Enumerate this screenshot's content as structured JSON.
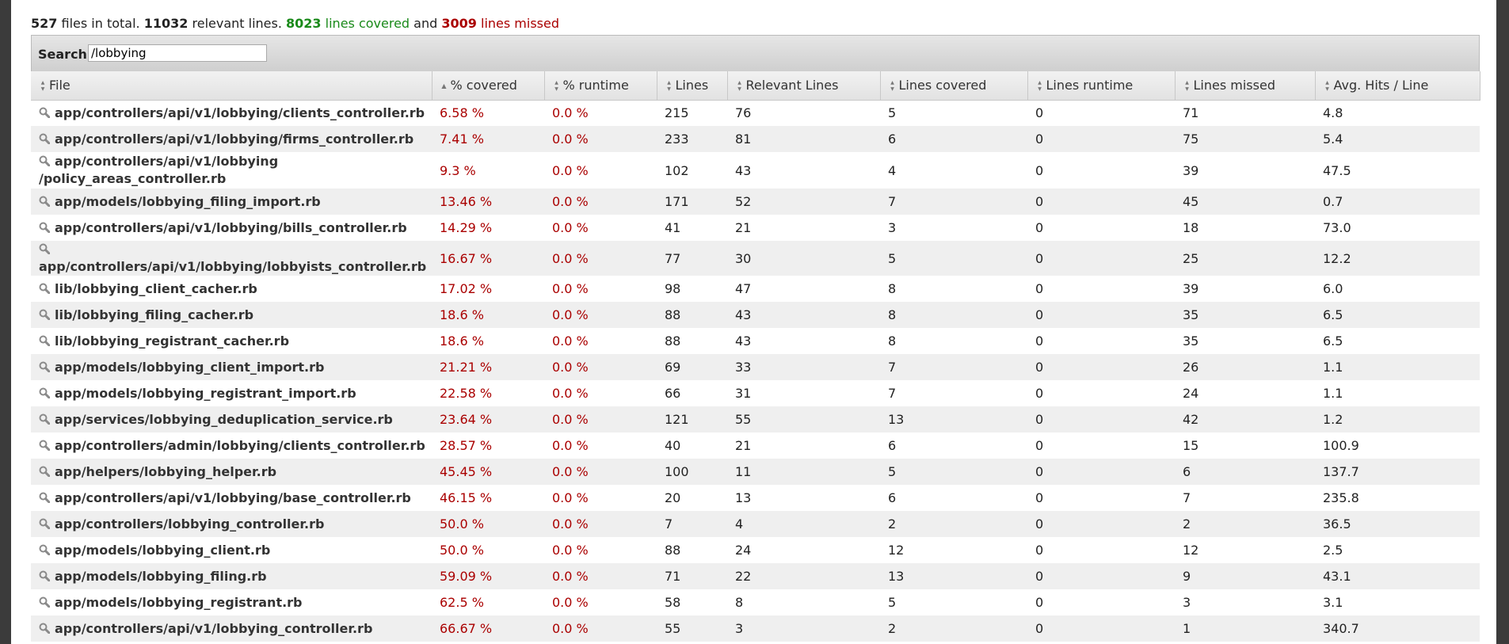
{
  "summary": {
    "files_count": "527",
    "files_text": "files in total.",
    "relevant_count": "11032",
    "relevant_text": "relevant lines.",
    "covered_count": "8023",
    "covered_text": "lines covered",
    "and_text": "and",
    "missed_count": "3009",
    "missed_text": "lines missed"
  },
  "search": {
    "label": "Search:",
    "value": "/lobbying"
  },
  "columns": [
    "File",
    "% covered",
    "% runtime",
    "Lines",
    "Relevant Lines",
    "Lines covered",
    "Lines runtime",
    "Lines missed",
    "Avg. Hits / Line"
  ],
  "rows": [
    {
      "file": "app/controllers/api/v1/lobbying/clients_controller.rb",
      "covered_pct": "6.58 %",
      "runtime_pct": "0.0 %",
      "lines": "215",
      "relevant": "76",
      "covered": "5",
      "runtime": "0",
      "missed": "71",
      "avg": "4.8"
    },
    {
      "file": "app/controllers/api/v1/lobbying/firms_controller.rb",
      "covered_pct": "7.41 %",
      "runtime_pct": "0.0 %",
      "lines": "233",
      "relevant": "81",
      "covered": "6",
      "runtime": "0",
      "missed": "75",
      "avg": "5.4"
    },
    {
      "file": "app/controllers/api/v1/lobbying/policy_areas_controller.rb",
      "covered_pct": "9.3 %",
      "runtime_pct": "0.0 %",
      "lines": "102",
      "relevant": "43",
      "covered": "4",
      "runtime": "0",
      "missed": "39",
      "avg": "47.5"
    },
    {
      "file": "app/models/lobbying_filing_import.rb",
      "covered_pct": "13.46 %",
      "runtime_pct": "0.0 %",
      "lines": "171",
      "relevant": "52",
      "covered": "7",
      "runtime": "0",
      "missed": "45",
      "avg": "0.7"
    },
    {
      "file": "app/controllers/api/v1/lobbying/bills_controller.rb",
      "covered_pct": "14.29 %",
      "runtime_pct": "0.0 %",
      "lines": "41",
      "relevant": "21",
      "covered": "3",
      "runtime": "0",
      "missed": "18",
      "avg": "73.0"
    },
    {
      "file": "app/controllers/api/v1/lobbying/lobbyists_controller.rb",
      "covered_pct": "16.67 %",
      "runtime_pct": "0.0 %",
      "lines": "77",
      "relevant": "30",
      "covered": "5",
      "runtime": "0",
      "missed": "25",
      "avg": "12.2"
    },
    {
      "file": "lib/lobbying_client_cacher.rb",
      "covered_pct": "17.02 %",
      "runtime_pct": "0.0 %",
      "lines": "98",
      "relevant": "47",
      "covered": "8",
      "runtime": "0",
      "missed": "39",
      "avg": "6.0"
    },
    {
      "file": "lib/lobbying_filing_cacher.rb",
      "covered_pct": "18.6 %",
      "runtime_pct": "0.0 %",
      "lines": "88",
      "relevant": "43",
      "covered": "8",
      "runtime": "0",
      "missed": "35",
      "avg": "6.5"
    },
    {
      "file": "lib/lobbying_registrant_cacher.rb",
      "covered_pct": "18.6 %",
      "runtime_pct": "0.0 %",
      "lines": "88",
      "relevant": "43",
      "covered": "8",
      "runtime": "0",
      "missed": "35",
      "avg": "6.5"
    },
    {
      "file": "app/models/lobbying_client_import.rb",
      "covered_pct": "21.21 %",
      "runtime_pct": "0.0 %",
      "lines": "69",
      "relevant": "33",
      "covered": "7",
      "runtime": "0",
      "missed": "26",
      "avg": "1.1"
    },
    {
      "file": "app/models/lobbying_registrant_import.rb",
      "covered_pct": "22.58 %",
      "runtime_pct": "0.0 %",
      "lines": "66",
      "relevant": "31",
      "covered": "7",
      "runtime": "0",
      "missed": "24",
      "avg": "1.1"
    },
    {
      "file": "app/services/lobbying_deduplication_service.rb",
      "covered_pct": "23.64 %",
      "runtime_pct": "0.0 %",
      "lines": "121",
      "relevant": "55",
      "covered": "13",
      "runtime": "0",
      "missed": "42",
      "avg": "1.2"
    },
    {
      "file": "app/controllers/admin/lobbying/clients_controller.rb",
      "covered_pct": "28.57 %",
      "runtime_pct": "0.0 %",
      "lines": "40",
      "relevant": "21",
      "covered": "6",
      "runtime": "0",
      "missed": "15",
      "avg": "100.9"
    },
    {
      "file": "app/helpers/lobbying_helper.rb",
      "covered_pct": "45.45 %",
      "runtime_pct": "0.0 %",
      "lines": "100",
      "relevant": "11",
      "covered": "5",
      "runtime": "0",
      "missed": "6",
      "avg": "137.7"
    },
    {
      "file": "app/controllers/api/v1/lobbying/base_controller.rb",
      "covered_pct": "46.15 %",
      "runtime_pct": "0.0 %",
      "lines": "20",
      "relevant": "13",
      "covered": "6",
      "runtime": "0",
      "missed": "7",
      "avg": "235.8"
    },
    {
      "file": "app/controllers/lobbying_controller.rb",
      "covered_pct": "50.0 %",
      "runtime_pct": "0.0 %",
      "lines": "7",
      "relevant": "4",
      "covered": "2",
      "runtime": "0",
      "missed": "2",
      "avg": "36.5"
    },
    {
      "file": "app/models/lobbying_client.rb",
      "covered_pct": "50.0 %",
      "runtime_pct": "0.0 %",
      "lines": "88",
      "relevant": "24",
      "covered": "12",
      "runtime": "0",
      "missed": "12",
      "avg": "2.5"
    },
    {
      "file": "app/models/lobbying_filing.rb",
      "covered_pct": "59.09 %",
      "runtime_pct": "0.0 %",
      "lines": "71",
      "relevant": "22",
      "covered": "13",
      "runtime": "0",
      "missed": "9",
      "avg": "43.1"
    },
    {
      "file": "app/models/lobbying_registrant.rb",
      "covered_pct": "62.5 %",
      "runtime_pct": "0.0 %",
      "lines": "58",
      "relevant": "8",
      "covered": "5",
      "runtime": "0",
      "missed": "3",
      "avg": "3.1"
    },
    {
      "file": "app/controllers/api/v1/lobbying_controller.rb",
      "covered_pct": "66.67 %",
      "runtime_pct": "0.0 %",
      "lines": "55",
      "relevant": "3",
      "covered": "2",
      "runtime": "0",
      "missed": "1",
      "avg": "340.7"
    }
  ],
  "colors": {
    "covered_green": "#1a8a1a",
    "missed_red": "#a00000",
    "row_alt": "#efefef"
  }
}
